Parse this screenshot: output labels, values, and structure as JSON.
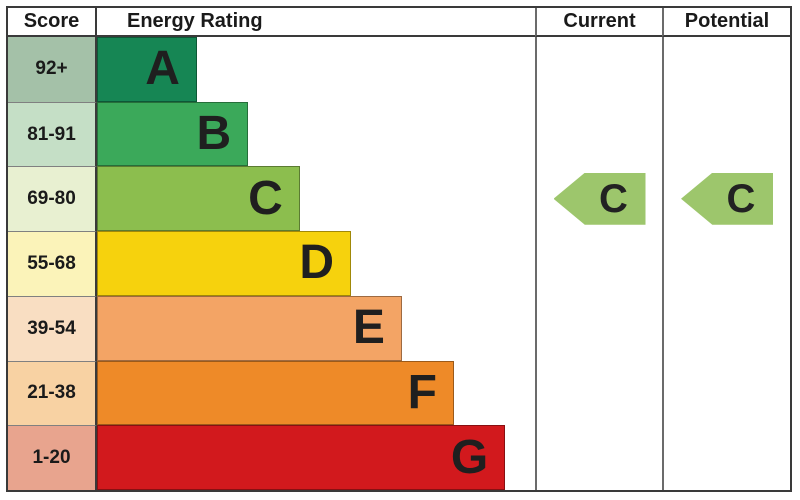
{
  "header": {
    "score": "Score",
    "energy_rating": "Energy Rating",
    "current": "Current",
    "potential": "Potential"
  },
  "bands": [
    {
      "letter": "A",
      "score_range": "92+",
      "bar_color": "#168654",
      "score_bg": "#a4c1a8",
      "width_pct": 22.8
    },
    {
      "letter": "B",
      "score_range": "81-91",
      "bar_color": "#3ba95a",
      "score_bg": "#c5dfc6",
      "width_pct": 34.5
    },
    {
      "letter": "C",
      "score_range": "69-80",
      "bar_color": "#8cbe4e",
      "score_bg": "#e8f0d1",
      "width_pct": 46.3
    },
    {
      "letter": "D",
      "score_range": "55-68",
      "bar_color": "#f6d20d",
      "score_bg": "#fbf3b9",
      "width_pct": 58.0
    },
    {
      "letter": "E",
      "score_range": "39-54",
      "bar_color": "#f3a465",
      "score_bg": "#f9dec2",
      "width_pct": 69.6
    },
    {
      "letter": "F",
      "score_range": "21-38",
      "bar_color": "#ee8a28",
      "score_bg": "#f8d2a3",
      "width_pct": 81.5
    },
    {
      "letter": "G",
      "score_range": "1-20",
      "bar_color": "#d2191d",
      "score_bg": "#e8a48e",
      "width_pct": 93.2
    }
  ],
  "current": {
    "rating": "C",
    "band_index": 2,
    "arrow_color": "#9dc66c"
  },
  "potential": {
    "rating": "C",
    "band_index": 2,
    "arrow_color": "#9dc66c"
  },
  "chart_data": {
    "type": "bar",
    "title": "Energy Rating",
    "columns": [
      "Score",
      "Energy Rating",
      "Current",
      "Potential"
    ],
    "categories": [
      "A",
      "B",
      "C",
      "D",
      "E",
      "F",
      "G"
    ],
    "score_ranges": [
      "92+",
      "81-91",
      "69-80",
      "55-68",
      "39-54",
      "21-38",
      "1-20"
    ],
    "bar_lengths_relative": [
      1,
      2,
      3,
      4,
      5,
      6,
      7
    ],
    "bar_colors": [
      "#168654",
      "#3ba95a",
      "#8cbe4e",
      "#f6d20d",
      "#f3a465",
      "#ee8a28",
      "#d2191d"
    ],
    "score_cell_colors": [
      "#a4c1a8",
      "#c5dfc6",
      "#e8f0d1",
      "#fbf3b9",
      "#f9dec2",
      "#f8d2a3",
      "#e8a48e"
    ],
    "current_rating": "C",
    "current_band": "69-80",
    "potential_rating": "C",
    "potential_band": "69-80",
    "arrow_color": "#9dc66c",
    "legend_position": "none",
    "grid": false
  }
}
